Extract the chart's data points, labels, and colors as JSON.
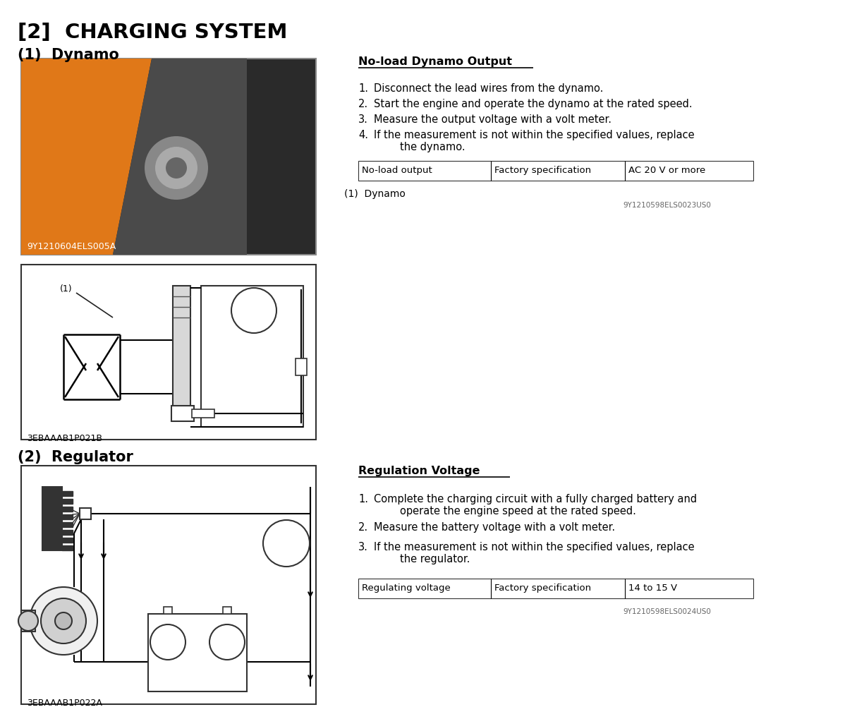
{
  "title_main": "[2]  CHARGING SYSTEM",
  "subtitle1": "(1)  Dynamo",
  "subtitle2": "(2)  Regulator",
  "bg_color": "#ffffff",
  "section1_heading": "No-load Dynamo Output",
  "section1_steps": [
    "Disconnect the lead wires from the dynamo.",
    "Start the engine and operate the dynamo at the rated speed.",
    "Measure the output voltage with a volt meter.",
    "If the measurement is not within the specified values, replace\n        the dynamo."
  ],
  "table1_cols": [
    "No-load output",
    "Factory specification",
    "AC 20 V or more"
  ],
  "table1_caption": "(1)  Dynamo",
  "table1_code": "9Y1210598ELS0023US0",
  "diagram1_code": "3EBAAAB1P021B",
  "photo_code": "9Y1210604ELS005A",
  "section2_heading": "Regulation Voltage",
  "section2_steps": [
    "Complete the charging circuit with a fully charged battery and\n        operate the engine speed at the rated speed.",
    "Measure the battery voltage with a volt meter.",
    "If the measurement is not within the specified values, replace\n        the regulator."
  ],
  "table2_cols": [
    "Regulating voltage",
    "Factory specification",
    "14 to 15 V"
  ],
  "table2_code": "9Y1210598ELS0024US0",
  "diagram2_code": "3EBAAAB1P022A",
  "photo_orange_color": "#E07818",
  "photo_dark_color": "#2a2a2a",
  "photo_mid_color": "#555555"
}
